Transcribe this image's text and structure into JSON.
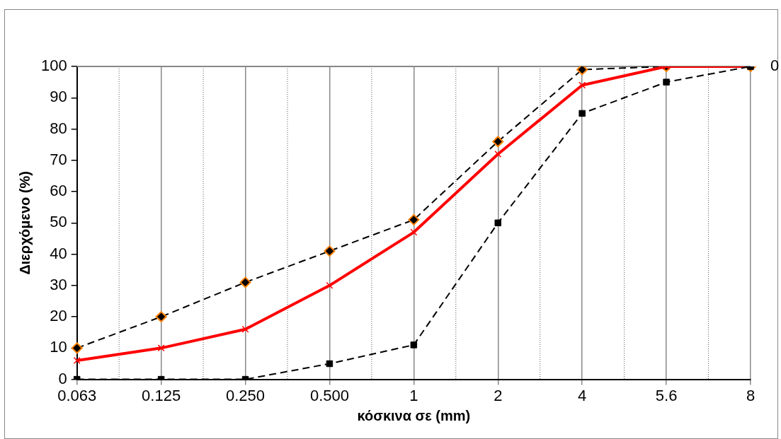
{
  "chart_data": {
    "type": "line",
    "xlabel": "κόσκινα σε (mm)",
    "ylabel": "Διερχόμενο (%)",
    "categories": [
      "0.063",
      "0.125",
      "0.250",
      "0.500",
      "1",
      "2",
      "4",
      "5.6",
      "8"
    ],
    "series": [
      {
        "color": "#000000",
        "marker": "diamond",
        "line_style": "dashed",
        "values": [
          10,
          20,
          31,
          41,
          51,
          76,
          99,
          100,
          100
        ]
      },
      {
        "color": "#ff0000",
        "marker": "cross",
        "line_style": "solid",
        "values": [
          6,
          10,
          16,
          30,
          47,
          72,
          94,
          100,
          100
        ]
      },
      {
        "color": "#000000",
        "marker": "square",
        "line_style": "dashed",
        "values": [
          0,
          0,
          0,
          5,
          11,
          50,
          85,
          95,
          100
        ]
      }
    ],
    "ylim": [
      0,
      100
    ],
    "yticks": [
      0,
      10,
      20,
      30,
      40,
      50,
      60,
      70,
      80,
      90,
      100
    ],
    "grid": "x",
    "legend": false,
    "annotations": [
      "0"
    ]
  }
}
